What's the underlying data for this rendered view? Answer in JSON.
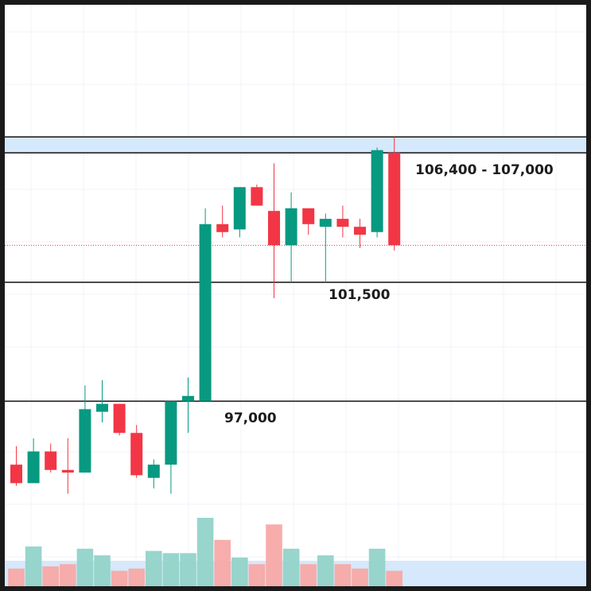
{
  "chart_data": {
    "type": "candlestick",
    "y_range": [
      90000,
      112000
    ],
    "colors": {
      "up": "#089981",
      "down": "#f23645",
      "up_volume": "#92d3c9",
      "down_volume": "#f7a9a7",
      "zone": "#d6e8fb"
    },
    "candles": [
      {
        "o": 94600,
        "h": 95300,
        "l": 93800,
        "c": 93900
      },
      {
        "o": 93900,
        "h": 95600,
        "l": 93900,
        "c": 95100
      },
      {
        "o": 95100,
        "h": 95400,
        "l": 94300,
        "c": 94400
      },
      {
        "o": 94400,
        "h": 95600,
        "l": 93500,
        "c": 94300
      },
      {
        "o": 94300,
        "h": 97600,
        "l": 94300,
        "c": 96700
      },
      {
        "o": 96600,
        "h": 97800,
        "l": 96200,
        "c": 96900
      },
      {
        "o": 96900,
        "h": 96900,
        "l": 95700,
        "c": 95800
      },
      {
        "o": 95800,
        "h": 96100,
        "l": 94100,
        "c": 94200
      },
      {
        "o": 94100,
        "h": 94800,
        "l": 93700,
        "c": 94600
      },
      {
        "o": 94600,
        "h": 97000,
        "l": 93500,
        "c": 97000
      },
      {
        "o": 97000,
        "h": 97900,
        "l": 95800,
        "c": 97200
      },
      {
        "o": 97000,
        "h": 104300,
        "l": 97000,
        "c": 103700
      },
      {
        "o": 103700,
        "h": 104400,
        "l": 103200,
        "c": 103400
      },
      {
        "o": 103500,
        "h": 105100,
        "l": 103200,
        "c": 105100
      },
      {
        "o": 105100,
        "h": 105200,
        "l": 104400,
        "c": 104400
      },
      {
        "o": 104200,
        "h": 106000,
        "l": 100900,
        "c": 102900
      },
      {
        "o": 102900,
        "h": 104900,
        "l": 101500,
        "c": 104300
      },
      {
        "o": 104300,
        "h": 104300,
        "l": 103300,
        "c": 103700
      },
      {
        "o": 103600,
        "h": 104100,
        "l": 101500,
        "c": 103900
      },
      {
        "o": 103900,
        "h": 104400,
        "l": 103200,
        "c": 103600
      },
      {
        "o": 103600,
        "h": 103900,
        "l": 102800,
        "c": 103300
      },
      {
        "o": 103400,
        "h": 106600,
        "l": 103200,
        "c": 106500
      },
      {
        "o": 106400,
        "h": 107000,
        "l": 102700,
        "c": 102900
      }
    ],
    "volumes": [
      8,
      18,
      9,
      10,
      17,
      14,
      7,
      8,
      16,
      15,
      15,
      31,
      21,
      13,
      10,
      28,
      17,
      10,
      14,
      10,
      8,
      17,
      7
    ],
    "levels": [
      {
        "price": 101500,
        "label": "101,500"
      },
      {
        "price": 97000,
        "label": "97,000"
      }
    ],
    "zones": [
      {
        "from": 106400,
        "to": 107000,
        "label": "106,400 - 107,000"
      }
    ],
    "current_price": 102900
  }
}
